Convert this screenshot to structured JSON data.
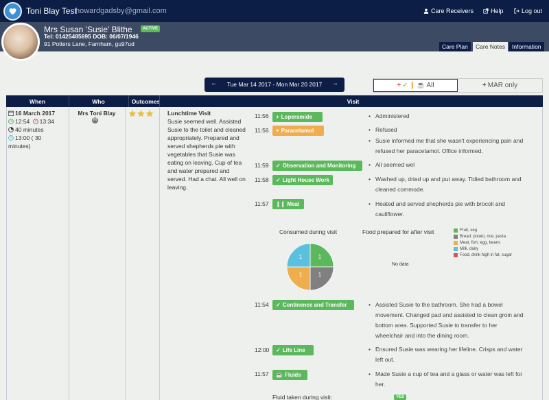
{
  "app": {
    "brand": "Toni Blay Test",
    "email": "howardgadsby@gmail.com",
    "nav": {
      "care_receivers": "Care Receivers",
      "help": "Help",
      "logout": "Log out"
    }
  },
  "patient": {
    "name": "Mrs Susan 'Susie' Blithe",
    "status": "ACTIVE",
    "contact": "Tel: 01425485695 DOB: 06/07/1946",
    "address": "91 Potters Lane, Farnham, gu97ud",
    "tabs": [
      "Care Plan",
      "Care Notes",
      "Information"
    ],
    "active_tab": "Care Notes"
  },
  "date_range": "Tue Mar 14 2017 - Mon Mar 20 2017",
  "filters": {
    "all": "All",
    "mar_only": "MAR only"
  },
  "table": {
    "headers": [
      "When",
      "Who",
      "Outcomes",
      "Visit"
    ],
    "row": {
      "date": "16 March 2017",
      "time_start": "12:54",
      "time_end": "13:34",
      "duration": "40 minutes",
      "scheduled_line1": "13:00 ( 30",
      "scheduled_line2": "minutes)",
      "who": "Mrs Toni Blay",
      "who_badge": "M",
      "stars": "★★★",
      "visit_title": "Lunchtime Visit",
      "visit_summary_lines": [
        "Susie seemed well. Assisted",
        "Susie to the toilet and cleaned",
        "appropriately. Prepared and",
        "served shepherds pie with",
        "vegetables that Susie was",
        "eating on leaving. Cup of tea",
        "and water prepared and",
        "served. Had a chat. All well on",
        "leaving."
      ],
      "tasks": [
        {
          "time": "11:56",
          "label": "Loperamide",
          "notes": [
            "Administered"
          ]
        },
        {
          "time": "11:56",
          "label": "Paracetamol",
          "notes": [
            "Refused",
            "Susie informed me that she wasn't experiencing pain and",
            "refused her paracetamol. Office informed."
          ]
        },
        {
          "time": "11:59",
          "label": "Observation and Monitoring",
          "notes": [
            "All seemed wel"
          ]
        },
        {
          "time": "11:58",
          "label": "Light House Work",
          "notes": [
            "Washed up, dried up and put away. Tidied bathroom and",
            "cleaned commode."
          ]
        },
        {
          "time": "11:57",
          "label": "Meal",
          "notes": [
            "Heated and served shepherds pie with brocoli and",
            "cauliflower."
          ]
        },
        {
          "time": "11:54",
          "label": "Continence and Transfer",
          "notes": [
            "Assisted Susie to the bathroom. She had a bowel",
            "movement. Changed pad and assisted to clean groin and",
            "bottom area. Supported Susie to transfer to her",
            "wheelchair and into the dining room."
          ]
        },
        {
          "time": "12:00",
          "label": "Life Line",
          "notes": [
            "Ensured Susie was wearing her lifeline. Crisps and water",
            "left out."
          ]
        },
        {
          "time": "11:57",
          "label": "Fluids",
          "notes": [
            "Made Susie a cup of tea and a glass or water was left for",
            "her."
          ]
        }
      ],
      "consumed_title": "Consumed during visit",
      "prepared_title": "Food prepared for after visit",
      "no_data": "No data",
      "legend": [
        {
          "label": "Fruit, veg",
          "color": "#5cb85c"
        },
        {
          "label": "Bread, potato, rice, pasta",
          "color": "#808080"
        },
        {
          "label": "Meat, fish, egg, beans",
          "color": "#f0ad4e"
        },
        {
          "label": "Milk, dairy",
          "color": "#5bc0de"
        },
        {
          "label": "Food, drink high in fat, sugar",
          "color": "#d9534f"
        }
      ],
      "pie_values": [
        1,
        1,
        1,
        1
      ],
      "fluid_label": "Fluid taken during visit:",
      "fluid_value": "YES"
    }
  }
}
